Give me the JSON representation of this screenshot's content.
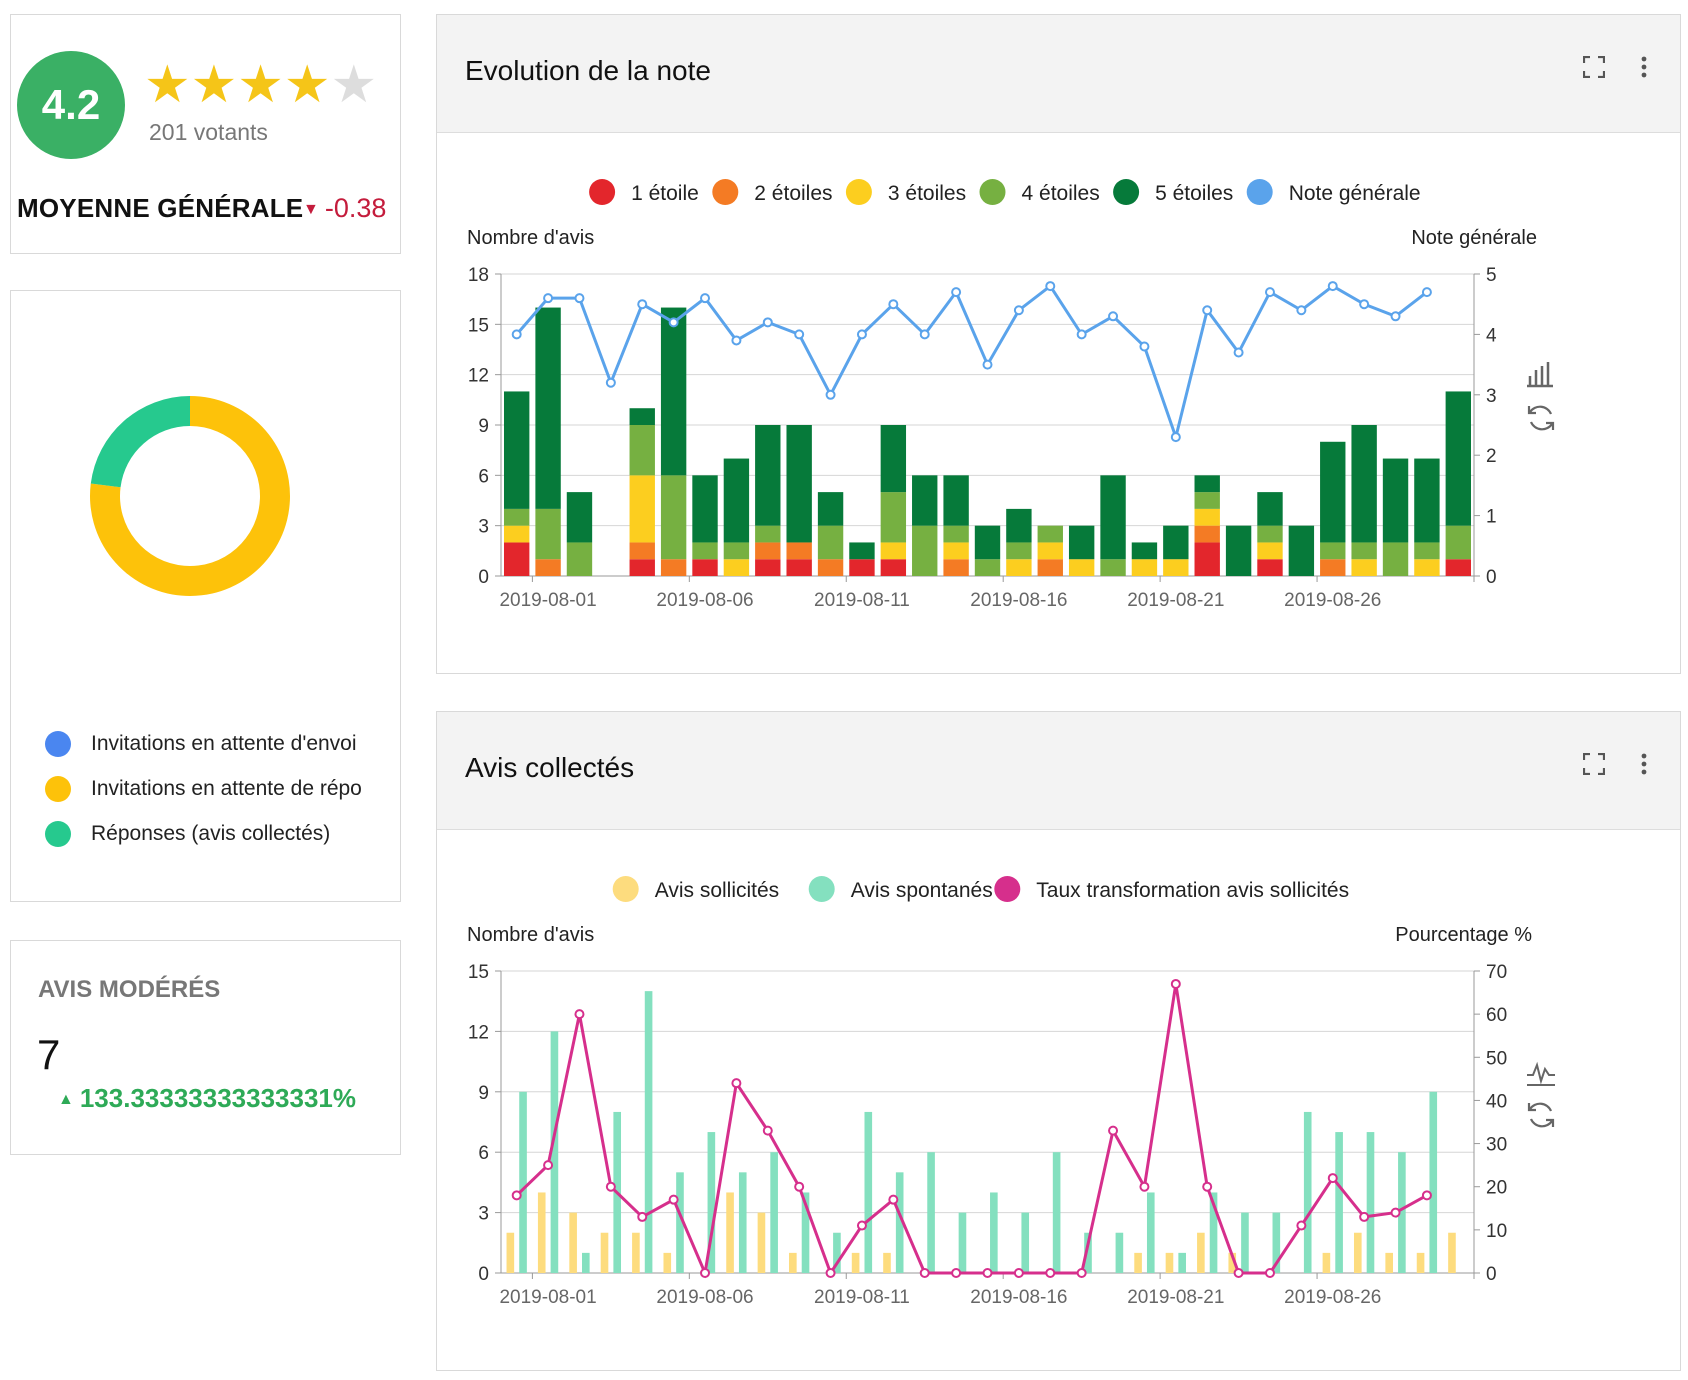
{
  "rating": {
    "score": "4.2",
    "stars": [
      {
        "state": "on",
        "icon": "star-filled-icon"
      },
      {
        "state": "on",
        "icon": "star-filled-icon"
      },
      {
        "state": "on",
        "icon": "star-filled-icon"
      },
      {
        "state": "on",
        "icon": "star-filled-icon"
      },
      {
        "state": "off",
        "icon": "star-empty-icon"
      }
    ],
    "voters": "201 votants",
    "title": "MOYENNE GÉNÉRALE",
    "delta": "-0.38",
    "delta_color": "#c41c3c",
    "badge_color": "#3ab065"
  },
  "invitations": {
    "legend": [
      {
        "label": "Invitations en attente d'envoi",
        "color": "#4a86f0"
      },
      {
        "label": "Invitations en attente de répo",
        "color": "#fdc20a"
      },
      {
        "label": "Réponses (avis collectés)",
        "color": "#26c98e"
      }
    ],
    "chart_data": {
      "type": "pie",
      "donut": true,
      "slices": [
        {
          "name": "Invitations en attente d'envoi",
          "value": 0,
          "color": "#4a86f0"
        },
        {
          "name": "Invitations en attente de répo",
          "value": 77,
          "color": "#fdc20a"
        },
        {
          "name": "Réponses (avis collectés)",
          "value": 23,
          "color": "#26c98e"
        }
      ]
    }
  },
  "moderated": {
    "title": "AVIS MODÉRÉS",
    "value": "7",
    "delta": "133.33333333333331%",
    "delta_color": "#2eaa57"
  },
  "evolution": {
    "title": "Evolution de la note",
    "tools": {
      "expand_icon": "expand-icon",
      "menu_icon": "more-vert-icon",
      "bar_icon": "bar-chart-icon",
      "refresh_icon": "refresh-icon"
    },
    "chart_data": {
      "type": "bar",
      "stacked": true,
      "legend_position": "top-center",
      "ylabel": "Nombre d'avis",
      "y2label": "Note générale",
      "ylim": [
        0,
        18
      ],
      "y2lim": [
        0,
        5
      ],
      "yticks": [
        0,
        3,
        6,
        9,
        12,
        15,
        18
      ],
      "y2ticks": [
        0,
        1,
        2,
        3,
        4,
        5
      ],
      "grid": true,
      "x": [
        "2019-07-31",
        "2019-08-01",
        "2019-08-02",
        "2019-08-03",
        "2019-08-04",
        "2019-08-05",
        "2019-08-06",
        "2019-08-07",
        "2019-08-08",
        "2019-08-09",
        "2019-08-10",
        "2019-08-11",
        "2019-08-12",
        "2019-08-13",
        "2019-08-14",
        "2019-08-15",
        "2019-08-16",
        "2019-08-17",
        "2019-08-18",
        "2019-08-19",
        "2019-08-20",
        "2019-08-21",
        "2019-08-22",
        "2019-08-23",
        "2019-08-24",
        "2019-08-25",
        "2019-08-26",
        "2019-08-27",
        "2019-08-28",
        "2019-08-29",
        "2019-08-30"
      ],
      "xtick_labels": [
        "2019-08-01",
        "2019-08-06",
        "2019-08-11",
        "2019-08-16",
        "2019-08-21",
        "2019-08-26"
      ],
      "series": [
        {
          "name": "1 étoile",
          "color": "#e3262c",
          "values": [
            2,
            0,
            0,
            0,
            1,
            0,
            1,
            0,
            1,
            1,
            0,
            1,
            1,
            0,
            0,
            0,
            0,
            0,
            0,
            0,
            0,
            0,
            2,
            0,
            1,
            0,
            0,
            0,
            0,
            0,
            1
          ]
        },
        {
          "name": "2 étoiles",
          "color": "#f47b24",
          "values": [
            0,
            1,
            0,
            0,
            1,
            1,
            0,
            0,
            1,
            1,
            1,
            0,
            0,
            0,
            1,
            0,
            0,
            1,
            0,
            0,
            0,
            0,
            1,
            0,
            0,
            0,
            1,
            0,
            0,
            0,
            0
          ]
        },
        {
          "name": "3 étoiles",
          "color": "#fcce1f",
          "values": [
            1,
            0,
            0,
            0,
            4,
            0,
            0,
            1,
            0,
            0,
            0,
            0,
            1,
            0,
            1,
            0,
            1,
            1,
            1,
            0,
            1,
            1,
            1,
            0,
            1,
            0,
            0,
            1,
            0,
            1,
            0
          ]
        },
        {
          "name": "4 étoiles",
          "color": "#76b041",
          "values": [
            1,
            3,
            2,
            0,
            3,
            5,
            1,
            1,
            1,
            0,
            2,
            0,
            3,
            3,
            1,
            1,
            1,
            1,
            0,
            1,
            0,
            0,
            1,
            0,
            1,
            0,
            1,
            1,
            2,
            1,
            2
          ]
        },
        {
          "name": "5 étoiles",
          "color": "#067a3a",
          "values": [
            7,
            12,
            3,
            0,
            1,
            10,
            4,
            5,
            6,
            7,
            2,
            1,
            4,
            3,
            3,
            2,
            2,
            0,
            2,
            5,
            1,
            2,
            1,
            3,
            2,
            3,
            6,
            7,
            5,
            5,
            8
          ]
        }
      ],
      "line_series": {
        "name": "Note générale",
        "color": "#5aa3eb",
        "axis": "right",
        "values": [
          4.0,
          4.6,
          4.6,
          3.2,
          4.5,
          4.2,
          4.6,
          3.9,
          4.2,
          4.0,
          3.0,
          4.0,
          4.5,
          4.0,
          4.7,
          3.5,
          4.4,
          4.8,
          4.0,
          4.3,
          3.8,
          2.3,
          4.4,
          3.7,
          4.7,
          4.4,
          4.8,
          4.5,
          4.3,
          4.7,
          null
        ]
      }
    }
  },
  "collected": {
    "title": "Avis collectés",
    "tools": {
      "expand_icon": "expand-icon",
      "menu_icon": "more-vert-icon",
      "line_icon": "line-chart-icon",
      "refresh_icon": "refresh-icon"
    },
    "chart_data": {
      "type": "bar",
      "stacked": false,
      "legend_position": "top-center",
      "ylabel": "Nombre d'avis",
      "y2label": "Pourcentage %",
      "ylim": [
        0,
        15
      ],
      "y2lim": [
        0,
        70
      ],
      "yticks": [
        0,
        3,
        6,
        9,
        12,
        15
      ],
      "y2ticks": [
        0,
        10,
        20,
        30,
        40,
        50,
        60,
        70
      ],
      "grid": true,
      "x": [
        "2019-07-31",
        "2019-08-01",
        "2019-08-02",
        "2019-08-03",
        "2019-08-04",
        "2019-08-05",
        "2019-08-06",
        "2019-08-07",
        "2019-08-08",
        "2019-08-09",
        "2019-08-10",
        "2019-08-11",
        "2019-08-12",
        "2019-08-13",
        "2019-08-14",
        "2019-08-15",
        "2019-08-16",
        "2019-08-17",
        "2019-08-18",
        "2019-08-19",
        "2019-08-20",
        "2019-08-21",
        "2019-08-22",
        "2019-08-23",
        "2019-08-24",
        "2019-08-25",
        "2019-08-26",
        "2019-08-27",
        "2019-08-28",
        "2019-08-29",
        "2019-08-30"
      ],
      "xtick_labels": [
        "2019-08-01",
        "2019-08-06",
        "2019-08-11",
        "2019-08-16",
        "2019-08-21",
        "2019-08-26"
      ],
      "series": [
        {
          "name": "Avis sollicités",
          "color": "#fddc7e",
          "values": [
            2,
            4,
            3,
            2,
            2,
            1,
            0,
            4,
            3,
            1,
            0,
            1,
            1,
            0,
            0,
            0,
            0,
            0,
            0,
            0,
            1,
            1,
            2,
            1,
            0,
            0,
            1,
            2,
            1,
            1,
            2
          ]
        },
        {
          "name": "Avis spontanés",
          "color": "#84e0bf",
          "values": [
            9,
            12,
            1,
            8,
            14,
            5,
            7,
            5,
            6,
            4,
            2,
            8,
            5,
            6,
            3,
            4,
            3,
            6,
            2,
            2,
            4,
            1,
            4,
            3,
            3,
            8,
            7,
            7,
            6,
            9,
            0
          ]
        }
      ],
      "line_series": {
        "name": "Taux transformation avis sollicités",
        "color": "#d62f8c",
        "axis": "right",
        "values": [
          18,
          25,
          60,
          20,
          13,
          17,
          0,
          44,
          33,
          20,
          0,
          11,
          17,
          0,
          0,
          0,
          0,
          0,
          0,
          33,
          20,
          67,
          20,
          0,
          0,
          11,
          22,
          13,
          14,
          18,
          null
        ]
      }
    }
  }
}
